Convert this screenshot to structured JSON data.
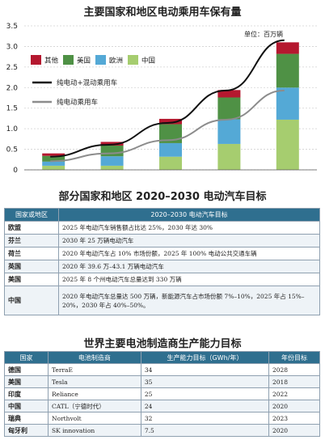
{
  "chart_data": {
    "type": "bar",
    "title": "主要国家和地区电动乘用车保有量",
    "unit_label": "单位：百万辆",
    "categories": [
      "2016",
      "2017",
      "2018",
      "2019",
      "2020"
    ],
    "stacked": true,
    "ylim": [
      0,
      3.5
    ],
    "yticks": [
      "0",
      "0.5",
      "1.0",
      "1.5",
      "2.0",
      "2.5",
      "3.0",
      "3.5"
    ],
    "grid": true,
    "legend_position": "top-left",
    "series": [
      {
        "name": "中国",
        "color": "#a6cd6f",
        "values": [
          0.1,
          0.1,
          0.32,
          0.63,
          1.22
        ]
      },
      {
        "name": "欧洲",
        "color": "#54a9d6",
        "values": [
          0.1,
          0.23,
          0.33,
          0.6,
          0.78
        ]
      },
      {
        "name": "美国",
        "color": "#4f9145",
        "values": [
          0.14,
          0.26,
          0.46,
          0.53,
          0.82
        ]
      },
      {
        "name": "其他",
        "color": "#b5182f",
        "values": [
          0.06,
          0.09,
          0.13,
          0.18,
          0.28
        ]
      }
    ],
    "lines": [
      {
        "name": "纯电动+混动乘用车",
        "color": "#111111",
        "values": [
          0.32,
          0.61,
          1.14,
          1.93,
          3.15
        ]
      },
      {
        "name": "纯电动乘用车",
        "color": "#8c8c8c",
        "values": [
          0.21,
          0.4,
          0.72,
          1.22,
          1.93
        ]
      }
    ]
  },
  "targets": {
    "title": "部分国家和地区 2020–2030 电动汽车目标",
    "headers": [
      "国家或地区",
      "2020–2030 电动汽车目标"
    ],
    "rows": [
      {
        "country": "欧盟",
        "target": "2025 年电动汽车销售额占比达 25%，2030 年达 30%"
      },
      {
        "country": "芬兰",
        "target": "2030 年 25 万辆电动汽车"
      },
      {
        "country": "荷兰",
        "target": "2020 年电动汽车占 10% 市场份额，2025 年 100% 电动公共交通车辆"
      },
      {
        "country": "英国",
        "target": "2020 年 39.6 万–43.1 万辆电动汽车"
      },
      {
        "country": "美国",
        "target": "2025 年 8 个州电动汽车总量达到 330 万辆"
      },
      {
        "country": "中国",
        "target": "2020 年电动汽车总量达 500 万辆，新能源汽车占市场份额 7%–10%，2025 年占 15%–20%，2030 年占 40%–50%。"
      }
    ]
  },
  "battery": {
    "title": "世界主要电池制造商生产能力目标",
    "headers": [
      "国家",
      "电池制造商",
      "生产能力目标（GWh/年）",
      "年份目标"
    ],
    "rows": [
      {
        "country": "德国",
        "maker": "TerraE",
        "capacity": "34",
        "year": "2028"
      },
      {
        "country": "美国",
        "maker": "Tesla",
        "capacity": "35",
        "year": "2018"
      },
      {
        "country": "印度",
        "maker": "Reliance",
        "capacity": "25",
        "year": "2022"
      },
      {
        "country": "中国",
        "maker": "CATL（宁德时代）",
        "capacity": "24",
        "year": "2020"
      },
      {
        "country": "瑞典",
        "maker": "Northvolt",
        "capacity": "32",
        "year": "2023"
      },
      {
        "country": "匈牙利",
        "maker": "SK innovation",
        "capacity": "7.5",
        "year": "2020"
      }
    ]
  }
}
